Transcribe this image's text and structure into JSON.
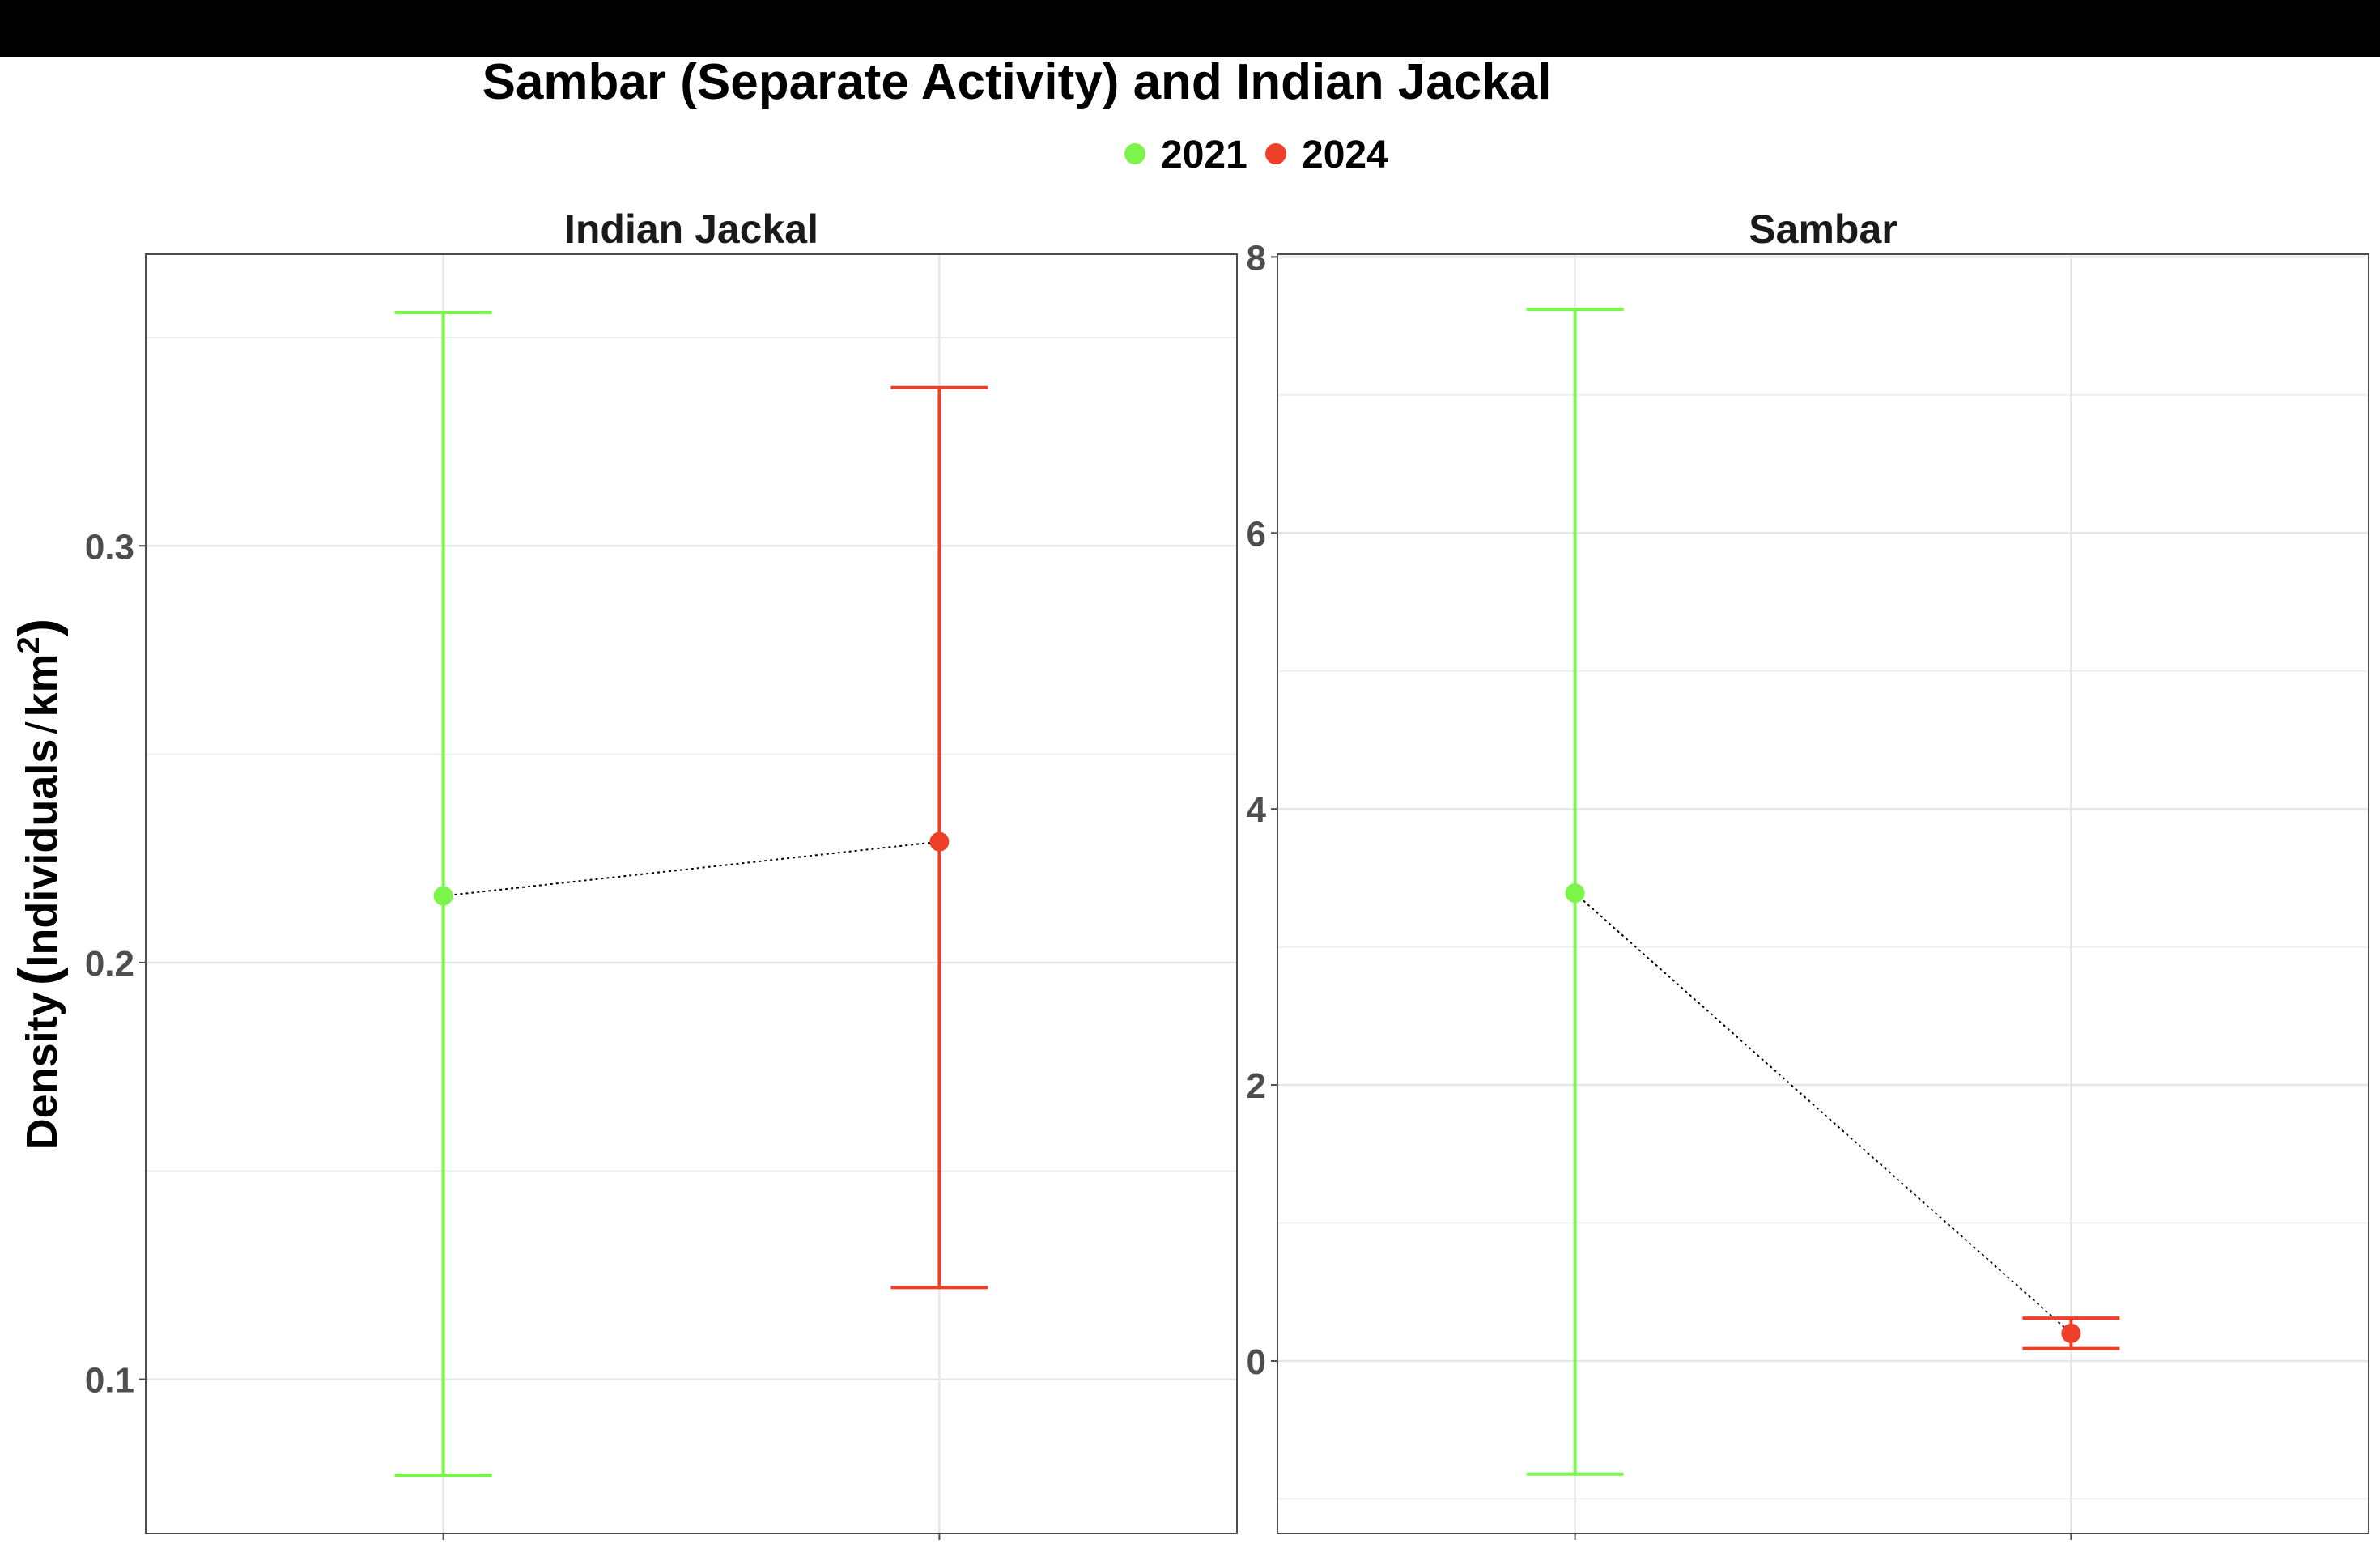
{
  "chart_data": {
    "type": "scatter",
    "title": "Sambar (Separate Activity) and Indian Jackal",
    "ylabel": "Density (Individuals / km²)",
    "ylabel_parts": {
      "main": "Density",
      "inner": "Individuals",
      "sep": "/",
      "unit": "km",
      "exp": "2"
    },
    "xlabel": "",
    "grid": true,
    "legend": {
      "position": "top",
      "entries": [
        {
          "label": "2021",
          "color": "#7CF54A"
        },
        {
          "label": "2024",
          "color": "#EE4028"
        }
      ]
    },
    "panels": [
      {
        "name": "Indian Jackal",
        "ylim": [
          0.063,
          0.37
        ],
        "yticks": [
          0.1,
          0.2,
          0.3
        ],
        "ytick_labels": [
          "0.1",
          "0.2",
          "0.3"
        ],
        "show_left_axis_labels": true,
        "points": [
          {
            "year": "2021",
            "x": 1,
            "y": 0.216,
            "lower": 0.077,
            "upper": 0.356
          },
          {
            "year": "2024",
            "x": 2,
            "y": 0.229,
            "lower": 0.122,
            "upper": 0.338
          }
        ]
      },
      {
        "name": "Sambar",
        "ylim": [
          -1.25,
          8.02
        ],
        "yticks": [
          0,
          2,
          4,
          6,
          8
        ],
        "ytick_labels": [
          "0",
          "2",
          "4",
          "6",
          "8"
        ],
        "show_left_axis_labels": true,
        "points": [
          {
            "year": "2021",
            "x": 1,
            "y": 3.39,
            "lower": -0.82,
            "upper": 7.62
          },
          {
            "year": "2024",
            "x": 2,
            "y": 0.2,
            "lower": 0.09,
            "upper": 0.31
          }
        ]
      }
    ]
  }
}
